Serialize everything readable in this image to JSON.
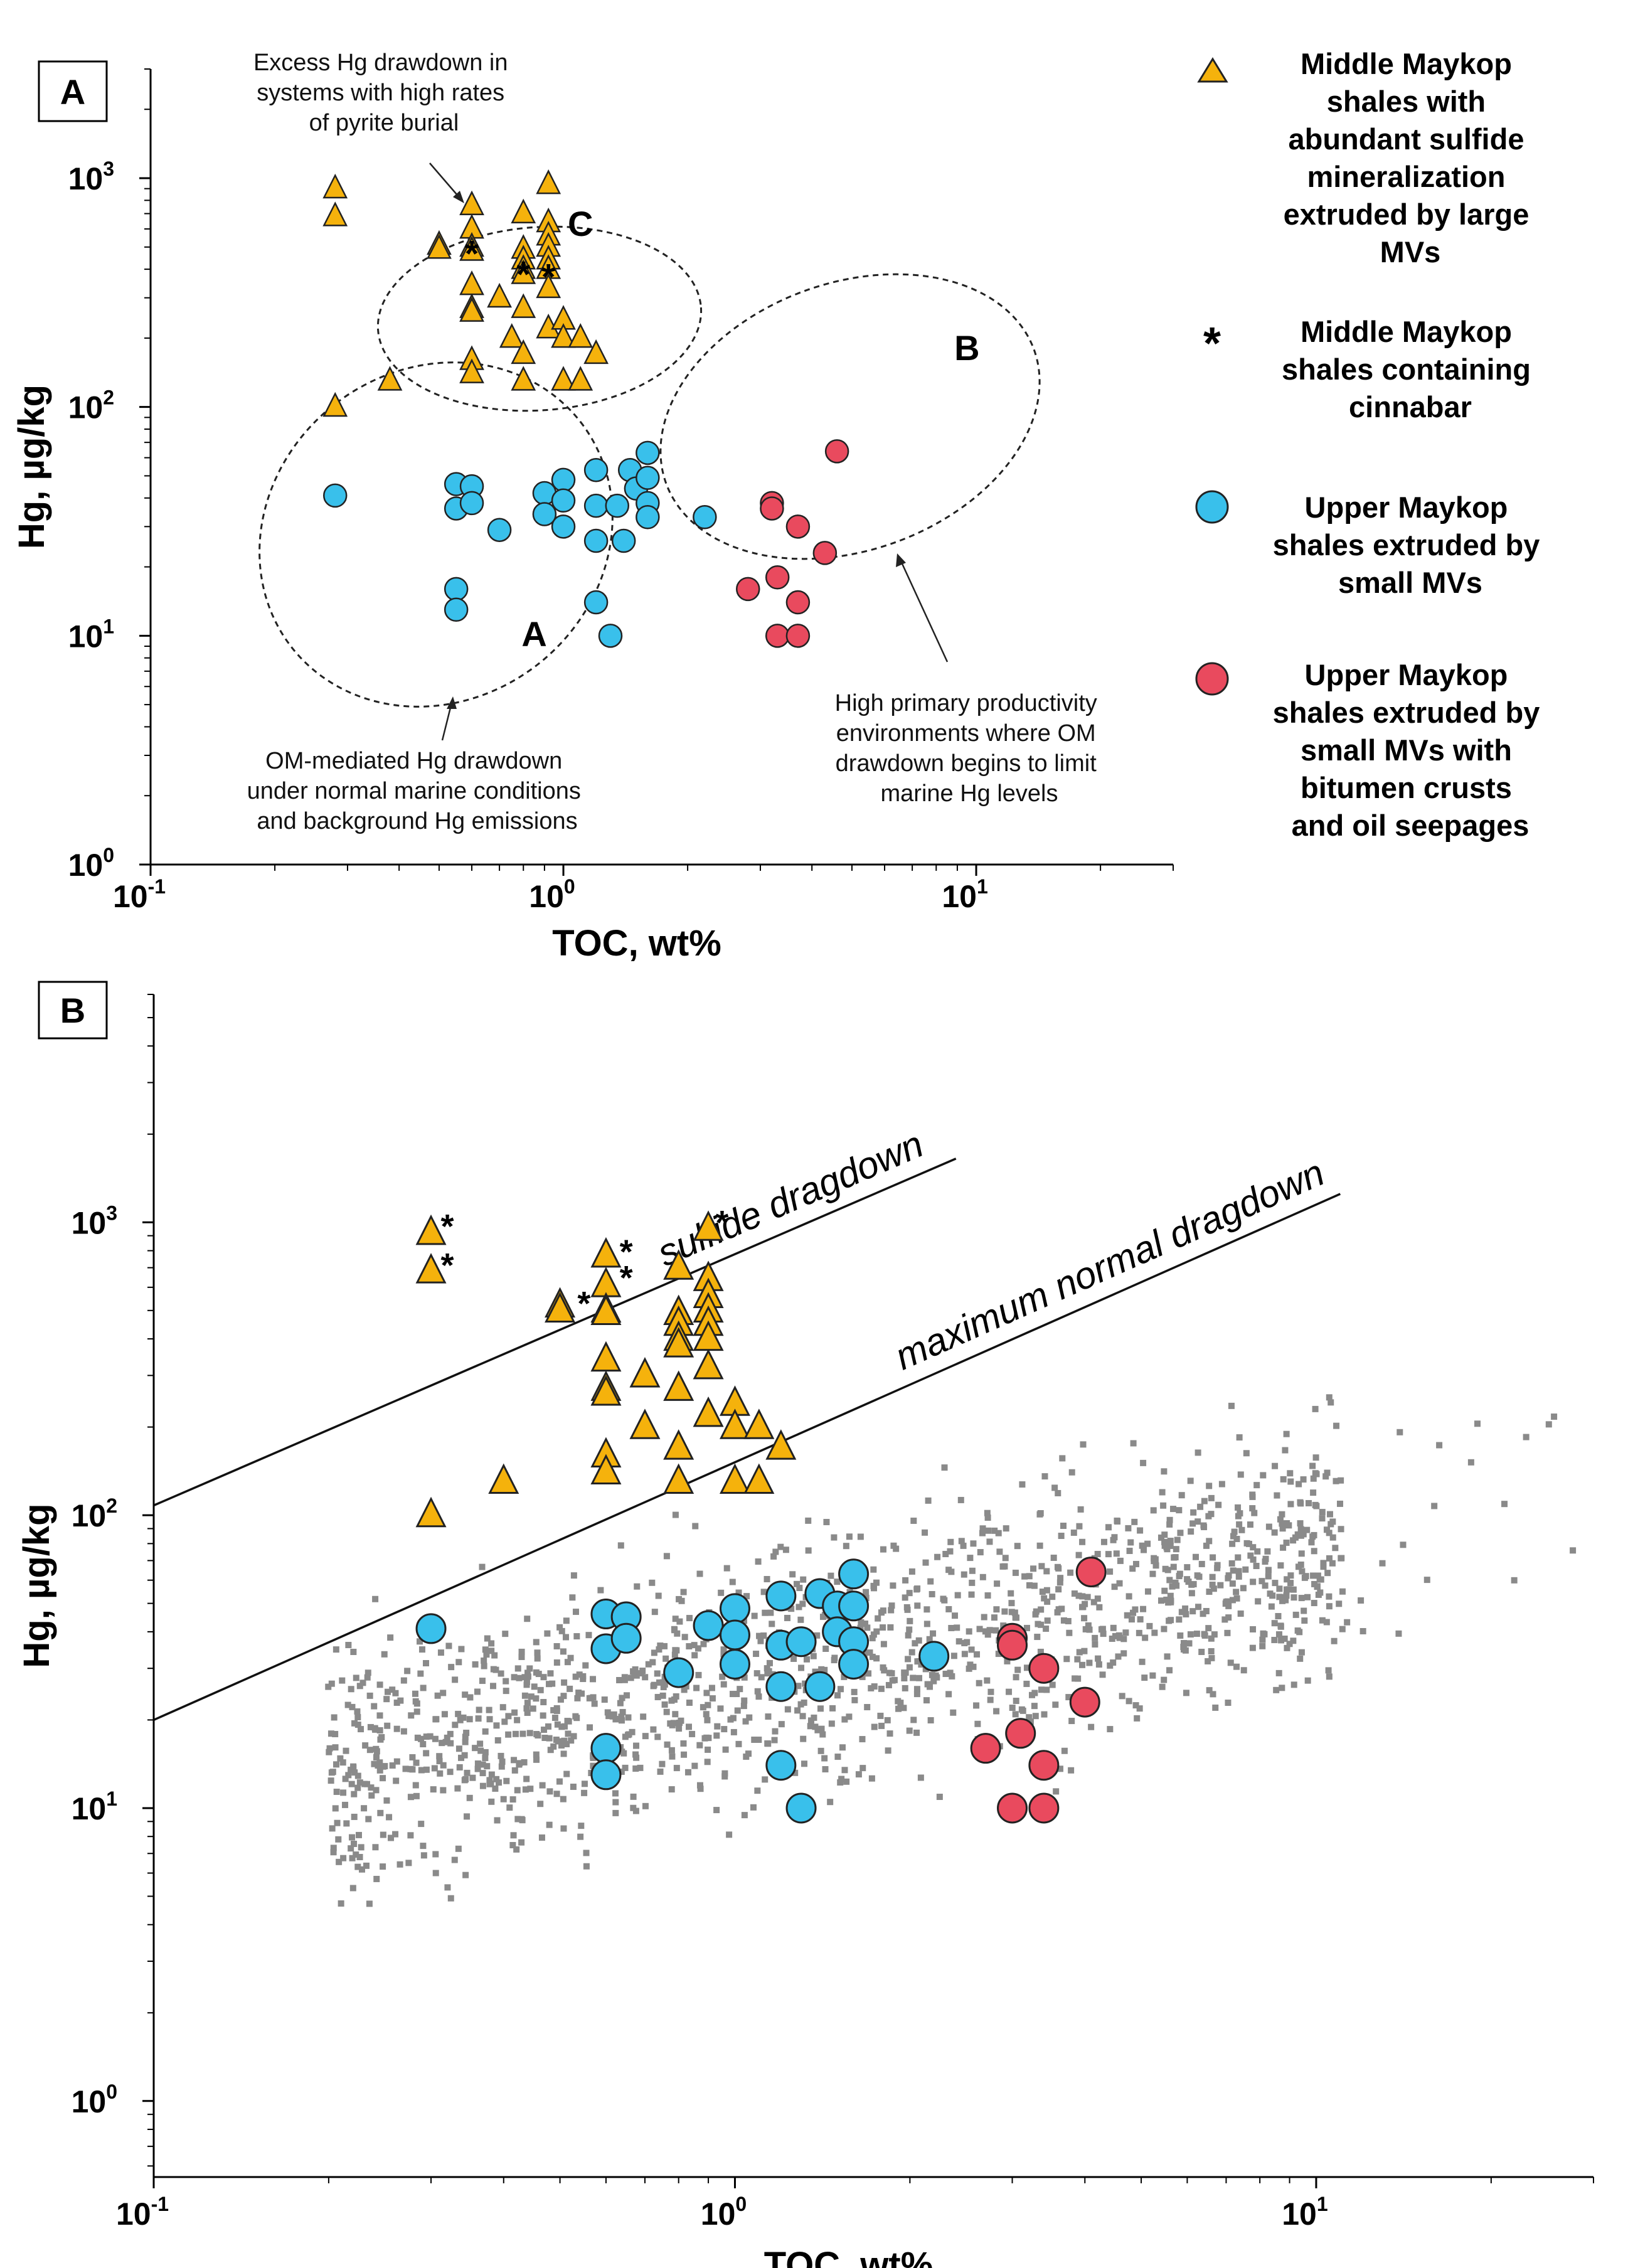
{
  "colors": {
    "triangle": "#F5B20C",
    "blue": "#39C0EB",
    "red": "#E94A5E",
    "gray": "#8A8A8A",
    "stroke": "#222222"
  },
  "legend": [
    {
      "symbol": "triangle",
      "lines": [
        "Middle Maykop",
        "shales with",
        "abundant sulfide",
        "mineralization",
        "extruded by large",
        "MVs"
      ]
    },
    {
      "symbol": "asterisk",
      "lines": [
        "Middle Maykop",
        "shales containing",
        "cinnabar"
      ]
    },
    {
      "symbol": "blue-circle",
      "lines": [
        "Upper Maykop",
        "shales extruded by",
        "small MVs"
      ]
    },
    {
      "symbol": "red-circle",
      "lines": [
        "Upper Maykop",
        "shales extruded by",
        "small MVs with",
        "bitumen crusts",
        "and oil seepages"
      ]
    }
  ],
  "chart_data": [
    {
      "panel": "A",
      "type": "scatter",
      "xscale": "log",
      "yscale": "log",
      "xlabel": "TOC, wt%",
      "ylabel": "Hg, µg/kg",
      "xlim": [
        0.1,
        30
      ],
      "ylim": [
        1,
        3000
      ],
      "xticks": [
        {
          "base": "10",
          "exp": "-1"
        },
        {
          "base": "10",
          "exp": "0"
        },
        {
          "base": "10",
          "exp": "1"
        }
      ],
      "yticks": [
        {
          "base": "10",
          "exp": "0"
        },
        {
          "base": "10",
          "exp": "1"
        },
        {
          "base": "10",
          "exp": "2"
        },
        {
          "base": "10",
          "exp": "3"
        }
      ],
      "regions": [
        {
          "label": "A",
          "label_x": 0.85,
          "label_y": 9
        },
        {
          "label": "B",
          "label_x": 9.5,
          "label_y": 160
        },
        {
          "label": "C",
          "label_x": 1.1,
          "label_y": 560
        }
      ],
      "annotations": [
        {
          "lines": [
            "Excess Hg drawdown in",
            "systems with high rates",
            "of pyrite burial"
          ]
        },
        {
          "lines": [
            "OM-mediated Hg drawdown",
            "under normal marine conditions",
            "and background Hg emissions"
          ]
        },
        {
          "lines": [
            "High primary productivity",
            "environments where OM",
            "drawdown begins to limit",
            "marine Hg levels"
          ]
        }
      ],
      "series": [
        {
          "name": "Middle Maykop shales with abundant sulfide mineralization extruded by large MVs",
          "marker": "triangle",
          "points": [
            [
              0.28,
              900
            ],
            [
              0.28,
              680
            ],
            [
              0.28,
              100
            ],
            [
              0.38,
              130
            ],
            [
              0.5,
              510
            ],
            [
              0.5,
              490
            ],
            [
              0.6,
              760
            ],
            [
              0.6,
              600
            ],
            [
              0.6,
              500
            ],
            [
              0.6,
              480
            ],
            [
              0.6,
              340
            ],
            [
              0.6,
              270
            ],
            [
              0.6,
              260
            ],
            [
              0.6,
              160
            ],
            [
              0.6,
              140
            ],
            [
              0.7,
              300
            ],
            [
              0.75,
              200
            ],
            [
              0.8,
              700
            ],
            [
              0.8,
              490
            ],
            [
              0.8,
              440
            ],
            [
              0.8,
              400
            ],
            [
              0.8,
              380
            ],
            [
              0.8,
              270
            ],
            [
              0.8,
              170
            ],
            [
              0.8,
              130
            ],
            [
              0.92,
              940
            ],
            [
              0.92,
              640
            ],
            [
              0.92,
              560
            ],
            [
              0.92,
              500
            ],
            [
              0.92,
              440
            ],
            [
              0.92,
              400
            ],
            [
              0.92,
              330
            ],
            [
              0.92,
              220
            ],
            [
              1.0,
              240
            ],
            [
              1.0,
              200
            ],
            [
              1.0,
              130
            ],
            [
              1.1,
              200
            ],
            [
              1.1,
              130
            ],
            [
              1.2,
              170
            ]
          ]
        },
        {
          "name": "Middle Maykop shales containing cinnabar",
          "marker": "asterisk",
          "points": [
            [
              0.6,
              480
            ],
            [
              0.8,
              390
            ],
            [
              0.92,
              380
            ]
          ]
        },
        {
          "name": "Upper Maykop shales extruded by small MVs",
          "marker": "circle-blue",
          "points": [
            [
              0.28,
              41
            ],
            [
              0.55,
              46
            ],
            [
              0.55,
              36
            ],
            [
              0.55,
              16
            ],
            [
              0.55,
              13
            ],
            [
              0.6,
              45
            ],
            [
              0.6,
              38
            ],
            [
              0.7,
              29
            ],
            [
              0.9,
              42
            ],
            [
              0.9,
              34
            ],
            [
              1.0,
              48
            ],
            [
              1.0,
              39
            ],
            [
              1.0,
              30
            ],
            [
              1.2,
              53
            ],
            [
              1.2,
              37
            ],
            [
              1.2,
              26
            ],
            [
              1.2,
              14
            ],
            [
              1.3,
              10
            ],
            [
              1.35,
              37
            ],
            [
              1.4,
              26
            ],
            [
              1.45,
              53
            ],
            [
              1.5,
              44
            ],
            [
              1.6,
              63
            ],
            [
              1.6,
              49
            ],
            [
              1.6,
              38
            ],
            [
              1.6,
              33
            ],
            [
              2.2,
              33
            ]
          ]
        },
        {
          "name": "Upper Maykop shales extruded by small MVs with bitumen crusts and oil seepages",
          "marker": "circle-red",
          "points": [
            [
              2.8,
              16
            ],
            [
              3.2,
              38
            ],
            [
              3.2,
              36
            ],
            [
              3.3,
              18
            ],
            [
              3.3,
              10
            ],
            [
              3.7,
              30
            ],
            [
              3.7,
              14
            ],
            [
              3.7,
              10
            ],
            [
              4.3,
              23
            ],
            [
              4.6,
              64
            ]
          ]
        }
      ]
    },
    {
      "panel": "B",
      "type": "scatter",
      "xscale": "log",
      "yscale": "log",
      "xlabel": "TOC, wt%",
      "ylabel": "Hg, µg/kg",
      "xlim": [
        0.1,
        30
      ],
      "ylim": [
        0.55,
        6000
      ],
      "xticks": [
        {
          "base": "10",
          "exp": "-1"
        },
        {
          "base": "10",
          "exp": "0"
        },
        {
          "base": "10",
          "exp": "1"
        }
      ],
      "yticks": [
        {
          "base": "10",
          "exp": "0"
        },
        {
          "base": "10",
          "exp": "1"
        },
        {
          "base": "10",
          "exp": "2"
        },
        {
          "base": "10",
          "exp": "3"
        }
      ],
      "lines": [
        {
          "label": "sulfide dragdown",
          "from": [
            0.1,
            108
          ],
          "to": [
            2.4,
            1650
          ]
        },
        {
          "label": "maximum normal dragdown",
          "from": [
            0.1,
            20
          ],
          "to": [
            11,
            1250
          ]
        }
      ],
      "background_data": {
        "description_hidden": true,
        "n_points": 1500,
        "x_range": [
          0.2,
          28
        ],
        "y_range": [
          0.7,
          2400
        ]
      },
      "series": [
        {
          "name": "Middle Maykop shales with abundant sulfide mineralization extruded by large MVs",
          "marker": "triangle",
          "points": [
            [
              0.3,
              920
            ],
            [
              0.3,
              680
            ],
            [
              0.3,
              100
            ],
            [
              0.4,
              130
            ],
            [
              0.5,
              520
            ],
            [
              0.5,
              500
            ],
            [
              0.6,
              770
            ],
            [
              0.6,
              610
            ],
            [
              0.6,
              500
            ],
            [
              0.6,
              490
            ],
            [
              0.6,
              340
            ],
            [
              0.6,
              270
            ],
            [
              0.6,
              260
            ],
            [
              0.6,
              160
            ],
            [
              0.6,
              140
            ],
            [
              0.7,
              300
            ],
            [
              0.7,
              200
            ],
            [
              0.8,
              700
            ],
            [
              0.8,
              490
            ],
            [
              0.8,
              450
            ],
            [
              0.8,
              400
            ],
            [
              0.8,
              380
            ],
            [
              0.8,
              270
            ],
            [
              0.8,
              170
            ],
            [
              0.8,
              130
            ],
            [
              0.9,
              950
            ],
            [
              0.9,
              640
            ],
            [
              0.9,
              560
            ],
            [
              0.9,
              500
            ],
            [
              0.9,
              450
            ],
            [
              0.9,
              400
            ],
            [
              0.9,
              320
            ],
            [
              0.9,
              220
            ],
            [
              1.0,
              240
            ],
            [
              1.0,
              200
            ],
            [
              1.0,
              130
            ],
            [
              1.1,
              200
            ],
            [
              1.1,
              130
            ],
            [
              1.2,
              170
            ]
          ]
        },
        {
          "name": "Middle Maykop shales containing cinnabar",
          "marker": "asterisk",
          "points": [
            [
              0.32,
              990
            ],
            [
              0.32,
              730
            ],
            [
              0.55,
              540
            ],
            [
              0.65,
              810
            ],
            [
              0.65,
              660
            ],
            [
              0.95,
              1020
            ]
          ]
        },
        {
          "name": "Upper Maykop shales extruded by small MVs",
          "marker": "circle-blue",
          "points": [
            [
              0.3,
              41
            ],
            [
              0.6,
              46
            ],
            [
              0.6,
              35
            ],
            [
              0.6,
              16
            ],
            [
              0.6,
              13
            ],
            [
              0.65,
              45
            ],
            [
              0.65,
              38
            ],
            [
              0.8,
              29
            ],
            [
              0.9,
              42
            ],
            [
              1.0,
              48
            ],
            [
              1.0,
              39
            ],
            [
              1.0,
              31
            ],
            [
              1.2,
              53
            ],
            [
              1.2,
              36
            ],
            [
              1.2,
              26
            ],
            [
              1.2,
              14
            ],
            [
              1.3,
              10
            ],
            [
              1.3,
              37
            ],
            [
              1.4,
              26
            ],
            [
              1.4,
              54
            ],
            [
              1.5,
              49
            ],
            [
              1.5,
              40
            ],
            [
              1.6,
              63
            ],
            [
              1.6,
              49
            ],
            [
              1.6,
              37
            ],
            [
              1.6,
              31
            ],
            [
              2.2,
              33
            ]
          ]
        },
        {
          "name": "Upper Maykop shales extruded by small MVs with bitumen crusts and oil seepages",
          "marker": "circle-red",
          "points": [
            [
              2.7,
              16
            ],
            [
              3.0,
              38
            ],
            [
              3.0,
              36
            ],
            [
              3.1,
              18
            ],
            [
              3.0,
              10
            ],
            [
              3.4,
              30
            ],
            [
              3.4,
              14
            ],
            [
              3.4,
              10
            ],
            [
              4.0,
              23
            ],
            [
              4.1,
              64
            ]
          ]
        }
      ]
    }
  ]
}
